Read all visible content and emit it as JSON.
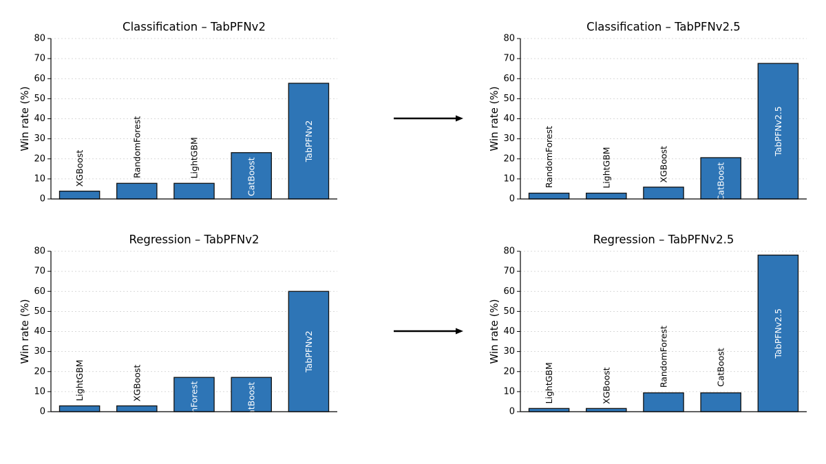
{
  "colors": {
    "bar": "#2e75b6",
    "bar_edge": "#111111",
    "axis": "#000000",
    "grid": "#cccccc",
    "arrow": "#000000"
  },
  "chart_data": [
    {
      "type": "bar",
      "title": "Classification – TabPFNv2",
      "ylabel": "Win rate (%)",
      "ylim": [
        0,
        80
      ],
      "yticks": [
        0,
        10,
        20,
        30,
        40,
        50,
        60,
        70,
        80
      ],
      "grid": "y-dotted",
      "categories": [
        "XGBoost",
        "RandomForest",
        "LightGBM",
        "CatBoost",
        "TabPFNv2"
      ],
      "values": [
        3.9,
        7.8,
        7.8,
        23.1,
        57.7
      ]
    },
    {
      "type": "bar",
      "title": "Classification – TabPFNv2.5",
      "ylabel": "Win rate (%)",
      "ylim": [
        0,
        80
      ],
      "yticks": [
        0,
        10,
        20,
        30,
        40,
        50,
        60,
        70,
        80
      ],
      "grid": "y-dotted",
      "categories": [
        "RandomForest",
        "LightGBM",
        "XGBoost",
        "CatBoost",
        "TabPFNv2.5"
      ],
      "values": [
        2.9,
        2.9,
        5.9,
        20.6,
        67.6
      ]
    },
    {
      "type": "bar",
      "title": "Regression – TabPFNv2",
      "ylabel": "Win rate (%)",
      "ylim": [
        0,
        80
      ],
      "yticks": [
        0,
        10,
        20,
        30,
        40,
        50,
        60,
        70,
        80
      ],
      "grid": "y-dotted",
      "categories": [
        "LightGBM",
        "XGBoost",
        "RandomForest",
        "CatBoost",
        "TabPFNv2"
      ],
      "values": [
        2.9,
        2.9,
        17.1,
        17.1,
        60.0
      ]
    },
    {
      "type": "bar",
      "title": "Regression – TabPFNv2.5",
      "ylabel": "Win rate (%)",
      "ylim": [
        0,
        80
      ],
      "yticks": [
        0,
        10,
        20,
        30,
        40,
        50,
        60,
        70,
        80
      ],
      "grid": "y-dotted",
      "categories": [
        "LightGBM",
        "XGBoost",
        "RandomForest",
        "CatBoost",
        "TabPFNv2.5"
      ],
      "values": [
        1.6,
        1.6,
        9.4,
        9.4,
        78.1
      ]
    }
  ]
}
